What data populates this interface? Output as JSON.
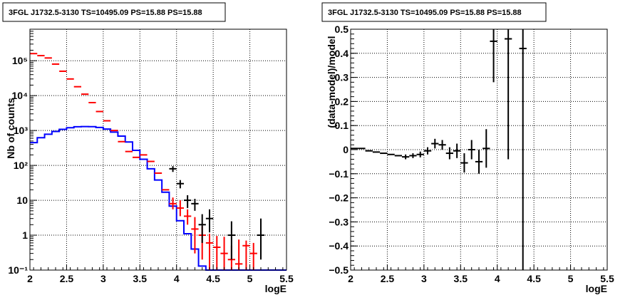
{
  "chart_data": [
    {
      "type": "histogram-log",
      "title": "3FGL J1732.5-3130 TS=10495.09 PS=15.88 PS=15.88",
      "xlabel": "logE",
      "ylabel": "Nb of counts",
      "xlim": [
        2,
        5.5
      ],
      "ylim": [
        0.1,
        800000
      ],
      "log_y": true,
      "grid": true,
      "x_ticks": [
        2,
        2.5,
        3,
        3.5,
        4,
        4.5,
        5,
        5.5
      ],
      "x_tick_labels": [
        "2",
        "2.5",
        "3",
        "3.5",
        "4",
        "4.5",
        "5",
        "5.5"
      ],
      "y_ticks": [
        0.1,
        1,
        10,
        100,
        1000,
        10000,
        100000
      ],
      "y_tick_labels": [
        "10⁻¹",
        "1",
        "10",
        "10²",
        "10³",
        "10⁴",
        "10⁵"
      ],
      "bin_width": 0.1,
      "series": [
        {
          "color": "#0000ff",
          "style": "step",
          "x": [
            2.05,
            2.15,
            2.25,
            2.35,
            2.45,
            2.55,
            2.65,
            2.75,
            2.85,
            2.95,
            3.05,
            3.15,
            3.25,
            3.35,
            3.45,
            3.55,
            3.65,
            3.75,
            3.85,
            3.95,
            4.05,
            4.15,
            4.25,
            4.35,
            4.45,
            4.55,
            4.65,
            4.75,
            4.85,
            4.95,
            5.05,
            5.15,
            5.25,
            5.35,
            5.45
          ],
          "y": [
            450,
            620,
            780,
            940,
            1080,
            1200,
            1280,
            1300,
            1290,
            1220,
            1100,
            900,
            690,
            470,
            270,
            150,
            80,
            38,
            17,
            6.8,
            2.6,
            1.1,
            0.4,
            0.13,
            0.05,
            0.05,
            0.05,
            0.05,
            0.05,
            0.05,
            0.05,
            0.05,
            0.05,
            0.05,
            0.05
          ]
        },
        {
          "color": "#ff0000",
          "style": "markers-errorbars",
          "x": [
            2.05,
            2.15,
            2.25,
            2.35,
            2.45,
            2.55,
            2.65,
            2.75,
            2.85,
            2.95,
            3.05,
            3.15,
            3.25,
            3.35,
            3.45,
            3.55,
            3.65,
            3.75,
            3.85,
            3.95,
            4.05,
            4.15,
            4.25,
            4.35,
            4.45,
            4.55,
            4.65,
            4.75,
            4.85,
            4.95,
            5.05
          ],
          "y": [
            160000,
            140000,
            120000,
            80000,
            50000,
            30000,
            18000,
            11000,
            6300,
            3500,
            1900,
            1000,
            480,
            250,
            170,
            200,
            130,
            60,
            20,
            8,
            6,
            3.5,
            1.5,
            1,
            0.6,
            0.45,
            0.3,
            0.2,
            0.15,
            0.5,
            0.3
          ],
          "err_lo": [
            0,
            0,
            0,
            0,
            0,
            0,
            0,
            0,
            0,
            0,
            0,
            0,
            0,
            0,
            0,
            0,
            0,
            0,
            0,
            2.5,
            2.5,
            1.5,
            1.2,
            0.8,
            0.55,
            0.4,
            0.28,
            0.19,
            0.145,
            0.4,
            0.25
          ],
          "err_hi": [
            0,
            0,
            0,
            0,
            0,
            0,
            0,
            0,
            0,
            0,
            0,
            0,
            0,
            0,
            0,
            0,
            0,
            0,
            0,
            4,
            4,
            2,
            1.8,
            0.8,
            0.5,
            0.5,
            0.6,
            0.3,
            0.6,
            0.2,
            0.3
          ]
        },
        {
          "color": "#000000",
          "style": "markers-errorbars",
          "x": [
            3.95,
            4.05,
            4.15,
            4.25,
            4.35,
            4.45,
            4.75,
            5.15
          ],
          "y": [
            80,
            30,
            10,
            8,
            2,
            3,
            1,
            1
          ],
          "err_lo": [
            15,
            8,
            4,
            3,
            1.4,
            1.8,
            0.8,
            0.8
          ],
          "err_hi": [
            15,
            8,
            4,
            3,
            2,
            2.5,
            1.5,
            2
          ]
        }
      ]
    },
    {
      "type": "scatter-errorbars",
      "title": "3FGL J1732.5-3130 TS=10495.09 PS=15.88 PS=15.88",
      "xlabel": "logE",
      "ylabel": "(data-model)/model",
      "xlim": [
        2,
        5.5
      ],
      "ylim": [
        -0.5,
        0.5
      ],
      "grid": true,
      "x_ticks": [
        2,
        2.5,
        3,
        3.5,
        4,
        4.5,
        5,
        5.5
      ],
      "x_tick_labels": [
        "2",
        "2.5",
        "3",
        "3.5",
        "4",
        "4.5",
        "5",
        "5.5"
      ],
      "y_ticks": [
        -0.5,
        -0.4,
        -0.3,
        -0.2,
        -0.1,
        0,
        0.1,
        0.2,
        0.3,
        0.4,
        0.5
      ],
      "y_tick_labels": [
        "−0.5",
        "−0.4",
        "−0.3",
        "−0.2",
        "−0.1",
        "0",
        "0.1",
        "0.2",
        "0.3",
        "0.4",
        "0.5"
      ],
      "bin_width": 0.1,
      "series": [
        {
          "color": "#000000",
          "x": [
            2.05,
            2.15,
            2.25,
            2.35,
            2.45,
            2.55,
            2.65,
            2.75,
            2.85,
            2.95,
            3.05,
            3.15,
            3.25,
            3.35,
            3.45,
            3.55,
            3.65,
            3.75,
            3.85,
            3.95,
            4.15,
            4.35
          ],
          "y": [
            0.005,
            0.005,
            -0.005,
            -0.01,
            -0.015,
            -0.02,
            -0.025,
            -0.03,
            -0.025,
            -0.02,
            -0.005,
            0.025,
            0.02,
            -0.015,
            -0.005,
            -0.055,
            0.0,
            -0.05,
            0.005,
            0.45,
            0.46,
            0.42
          ],
          "err": [
            0,
            0,
            0,
            0,
            0,
            0,
            0,
            0.01,
            0.01,
            0.012,
            0.015,
            0.02,
            0.02,
            0.025,
            0.03,
            0.04,
            0.04,
            0.05,
            0.08,
            0.17,
            0.5,
            0.92
          ]
        }
      ]
    }
  ]
}
